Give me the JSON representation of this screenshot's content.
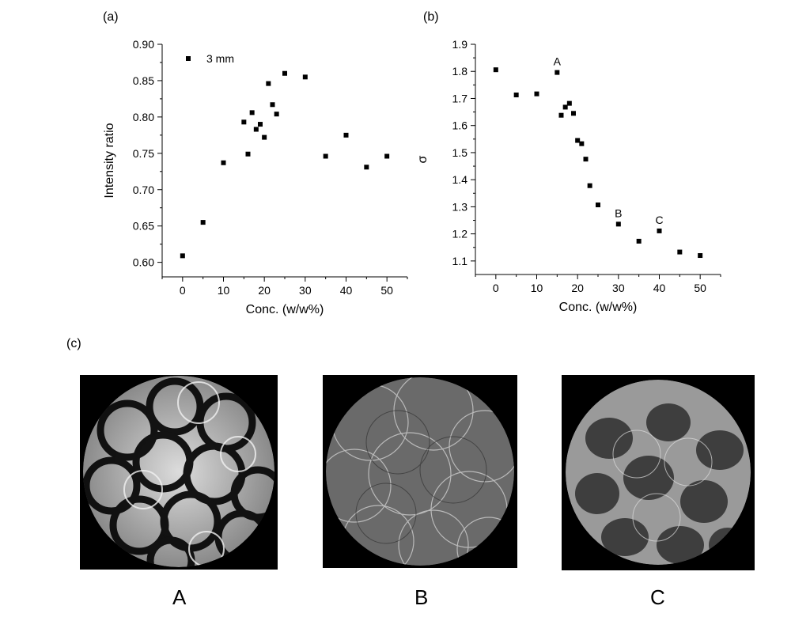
{
  "panels": {
    "a": "(a)",
    "b": "(b)",
    "c": "(c)"
  },
  "images": [
    {
      "label": "A",
      "style": "bright-rings"
    },
    {
      "label": "B",
      "style": "fine-lines"
    },
    {
      "label": "C",
      "style": "dark-blobs"
    }
  ],
  "colors": {
    "marker": "#000000",
    "axis": "#000000",
    "image_bg": "#000000"
  },
  "chart_data": [
    {
      "type": "scatter",
      "panel": "(a)",
      "xlabel": "Conc. (w/w%)",
      "ylabel": "Intensity ratio",
      "xlim": [
        -5,
        55
      ],
      "ylim": [
        0.58,
        0.9
      ],
      "xticks": [
        0,
        10,
        20,
        30,
        40,
        50
      ],
      "yticks": [
        0.6,
        0.65,
        0.7,
        0.75,
        0.8,
        0.85,
        0.9
      ],
      "ytick_labels": [
        "0.60",
        "0.65",
        "0.70",
        "0.75",
        "0.80",
        "0.85",
        "0.90"
      ],
      "legend": {
        "position": "top-left",
        "entries": [
          "3 mm"
        ]
      },
      "series": [
        {
          "name": "3 mm",
          "points": [
            [
              0,
              0.609
            ],
            [
              5,
              0.655
            ],
            [
              10,
              0.737
            ],
            [
              15,
              0.793
            ],
            [
              16,
              0.749
            ],
            [
              17,
              0.806
            ],
            [
              18,
              0.783
            ],
            [
              19,
              0.79
            ],
            [
              20,
              0.772
            ],
            [
              21,
              0.846
            ],
            [
              22,
              0.817
            ],
            [
              23,
              0.804
            ],
            [
              25,
              0.86
            ],
            [
              30,
              0.855
            ],
            [
              35,
              0.746
            ],
            [
              40,
              0.775
            ],
            [
              45,
              0.731
            ],
            [
              50,
              0.746
            ]
          ]
        }
      ],
      "annotations": []
    },
    {
      "type": "scatter",
      "panel": "(b)",
      "xlabel": "Conc. (w/w%)",
      "ylabel": "σ",
      "xlim": [
        -5,
        55
      ],
      "ylim": [
        1.05,
        1.9
      ],
      "xticks": [
        0,
        10,
        20,
        30,
        40,
        50
      ],
      "yticks": [
        1.1,
        1.2,
        1.3,
        1.4,
        1.5,
        1.6,
        1.7,
        1.8,
        1.9
      ],
      "ytick_labels": [
        "1.1",
        "1.2",
        "1.3",
        "1.4",
        "1.5",
        "1.6",
        "1.7",
        "1.8",
        "1.9"
      ],
      "legend": null,
      "series": [
        {
          "points": [
            [
              0,
              1.806
            ],
            [
              5,
              1.713
            ],
            [
              10,
              1.717
            ],
            [
              15,
              1.796
            ],
            [
              16,
              1.638
            ],
            [
              17,
              1.668
            ],
            [
              18,
              1.682
            ],
            [
              19,
              1.645
            ],
            [
              20,
              1.545
            ],
            [
              21,
              1.533
            ],
            [
              22,
              1.476
            ],
            [
              23,
              1.378
            ],
            [
              25,
              1.307
            ],
            [
              30,
              1.236
            ],
            [
              35,
              1.173
            ],
            [
              40,
              1.211
            ],
            [
              45,
              1.133
            ],
            [
              50,
              1.12
            ]
          ]
        }
      ],
      "annotations": [
        {
          "text": "A",
          "x": 15,
          "y": 1.796
        },
        {
          "text": "B",
          "x": 30,
          "y": 1.236
        },
        {
          "text": "C",
          "x": 40,
          "y": 1.211
        }
      ]
    }
  ]
}
